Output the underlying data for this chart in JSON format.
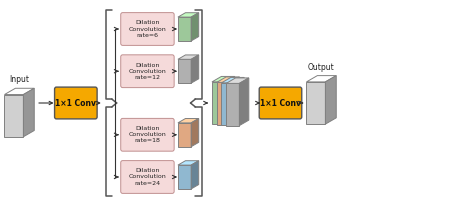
{
  "fig_width": 4.74,
  "fig_height": 2.06,
  "dpi": 100,
  "bg_color": "#ffffff",
  "input_label": "Input",
  "output_label": "Output",
  "conv1x1_color": "#F5A800",
  "conv1x1_text": "1×1 Conv",
  "dilation_boxes": [
    {
      "label": "Dilation\nConvolution\nrate=6",
      "cube_color": "#9DC89A"
    },
    {
      "label": "Dilation\nConvolution\nrate=12",
      "cube_color": "#B0B0B0"
    },
    {
      "label": "Dilation\nConvolution\nrate=18",
      "cube_color": "#E0A882"
    },
    {
      "label": "Dilation\nConvolution\nrate=24",
      "cube_color": "#90B8D0"
    }
  ],
  "dilation_box_color": "#F5DADA",
  "concat_cube_colors": [
    "#9DC89A",
    "#E0A882",
    "#90B8D0",
    "#B0B0B0"
  ],
  "bracket_color": "#555555",
  "arrow_color": "#333333",
  "text_color": "#222222",
  "input_cube_color": "#D0D0D0",
  "output_cube_color": "#D0D0D0",
  "xlim": [
    0,
    10
  ],
  "ylim": [
    0,
    4.12
  ]
}
